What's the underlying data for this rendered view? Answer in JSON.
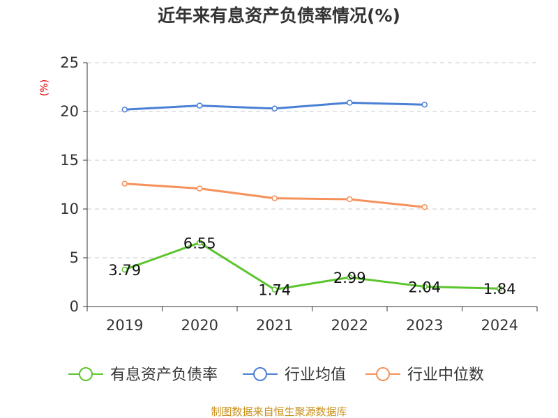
{
  "chart_data": {
    "type": "line",
    "title": "近年来有息资产负债率情况(%)",
    "ylabel": "(%)",
    "categories": [
      "2019",
      "2020",
      "2021",
      "2022",
      "2023",
      "2024"
    ],
    "ylim": [
      0,
      25
    ],
    "yticks": [
      0,
      5,
      10,
      15,
      20,
      25
    ],
    "grid": true,
    "legend_position": "bottom",
    "series": [
      {
        "name": "有息资产负债率",
        "color": "#5cc52e",
        "values": [
          3.79,
          6.55,
          1.74,
          2.99,
          2.04,
          1.84
        ],
        "labels": [
          "3.79",
          "6.55",
          "1.74",
          "2.99",
          "2.04",
          "1.84"
        ]
      },
      {
        "name": "行业均值",
        "color": "#4a7fd6",
        "values": [
          20.2,
          20.6,
          20.3,
          20.9,
          20.7,
          null
        ]
      },
      {
        "name": "行业中位数",
        "color": "#f5915a",
        "values": [
          12.6,
          12.1,
          11.1,
          11.0,
          10.2,
          null
        ]
      }
    ]
  },
  "footer": {
    "source": "制图数据来自恒生聚源数据库"
  }
}
